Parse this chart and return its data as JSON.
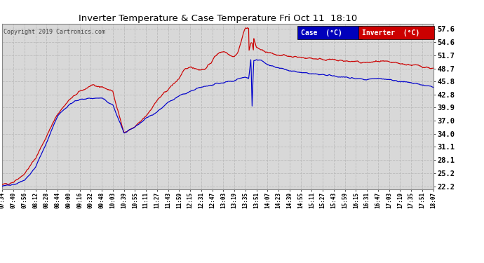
{
  "title": "Inverter Temperature & Case Temperature Fri Oct 11  18:10",
  "copyright": "Copyright 2019 Cartronics.com",
  "legend_case_label": "Case  (°C)",
  "legend_inverter_label": "Inverter  (°C)",
  "case_color": "#0000cc",
  "inverter_color": "#cc0000",
  "legend_case_bg": "#0000bb",
  "legend_inverter_bg": "#cc0000",
  "background_color": "#ffffff",
  "plot_bg_color": "#d8d8d8",
  "grid_color": "#bbbbbb",
  "yticks": [
    22.2,
    25.2,
    28.1,
    31.1,
    34.0,
    37.0,
    39.9,
    42.8,
    45.8,
    48.7,
    51.7,
    54.6,
    57.6
  ],
  "xtick_labels": [
    "07:34",
    "07:40",
    "07:56",
    "08:12",
    "08:28",
    "08:44",
    "09:00",
    "09:16",
    "09:32",
    "09:48",
    "10:03",
    "10:39",
    "10:55",
    "11:11",
    "11:27",
    "11:43",
    "11:59",
    "12:15",
    "12:31",
    "12:47",
    "13:03",
    "13:19",
    "13:35",
    "13:51",
    "14:07",
    "14:23",
    "14:39",
    "14:55",
    "15:11",
    "15:27",
    "15:43",
    "15:59",
    "16:15",
    "16:31",
    "16:47",
    "17:03",
    "17:19",
    "17:35",
    "17:51",
    "18:07"
  ],
  "ylim": [
    21.5,
    58.8
  ],
  "figsize": [
    6.9,
    3.75
  ],
  "dpi": 100
}
